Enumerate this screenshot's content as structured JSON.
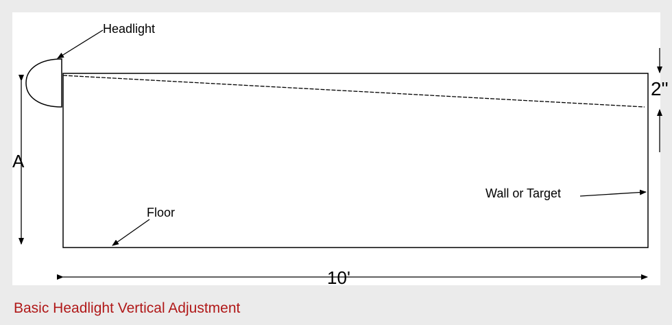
{
  "diagram": {
    "headlight_label": "Headlight",
    "floor_label": "Floor",
    "wall_label": "Wall or Target",
    "height_label": "A",
    "drop_label": "2\"",
    "distance_label": "10'"
  },
  "caption": "Basic Headlight Vertical Adjustment",
  "colors": {
    "background": "#ebebeb",
    "figure_background": "#ffffff",
    "caption": "#b01818",
    "ink": "#000000"
  }
}
